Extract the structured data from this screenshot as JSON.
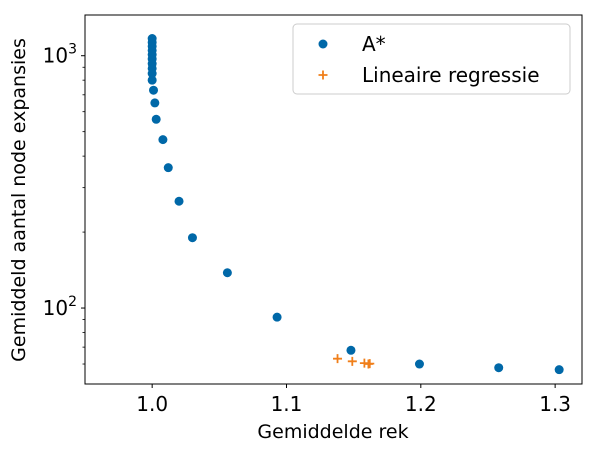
{
  "chart_data": {
    "type": "scatter",
    "xlabel": "Gemiddelde rek",
    "ylabel": "Gemiddeld aantal node expansies",
    "xlim": [
      0.95,
      1.32
    ],
    "ylim": [
      50,
      1450
    ],
    "yscale": "log",
    "grid": false,
    "legend_position": "top-right",
    "x_ticks": [
      {
        "value": 1.0,
        "label": "1.0"
      },
      {
        "value": 1.1,
        "label": "1.1"
      },
      {
        "value": 1.2,
        "label": "1.2"
      },
      {
        "value": 1.3,
        "label": "1.3"
      }
    ],
    "y_ticks": [
      {
        "value": 100,
        "base": "10",
        "exp": "2"
      },
      {
        "value": 1000,
        "base": "10",
        "exp": "3"
      }
    ],
    "series": [
      {
        "name": "A*",
        "marker": "circle",
        "color": "#0068a8",
        "points": [
          {
            "x": 1.0,
            "y": 1170
          },
          {
            "x": 1.0,
            "y": 1130
          },
          {
            "x": 1.0,
            "y": 1090
          },
          {
            "x": 1.0,
            "y": 1050
          },
          {
            "x": 1.0,
            "y": 1010
          },
          {
            "x": 1.0,
            "y": 970
          },
          {
            "x": 1.0,
            "y": 930
          },
          {
            "x": 1.0,
            "y": 890
          },
          {
            "x": 1.0,
            "y": 850
          },
          {
            "x": 1.0,
            "y": 800
          },
          {
            "x": 1.001,
            "y": 730
          },
          {
            "x": 1.002,
            "y": 650
          },
          {
            "x": 1.003,
            "y": 560
          },
          {
            "x": 1.008,
            "y": 465
          },
          {
            "x": 1.012,
            "y": 360
          },
          {
            "x": 1.02,
            "y": 265
          },
          {
            "x": 1.03,
            "y": 190
          },
          {
            "x": 1.056,
            "y": 138
          },
          {
            "x": 1.093,
            "y": 92
          },
          {
            "x": 1.148,
            "y": 68
          },
          {
            "x": 1.199,
            "y": 60
          },
          {
            "x": 1.258,
            "y": 58
          },
          {
            "x": 1.303,
            "y": 57
          }
        ]
      },
      {
        "name": "Lineaire regressie",
        "marker": "plus",
        "color": "#f07f1a",
        "points": [
          {
            "x": 1.138,
            "y": 63
          },
          {
            "x": 1.149,
            "y": 61.5
          },
          {
            "x": 1.158,
            "y": 60.5
          },
          {
            "x": 1.161,
            "y": 60
          },
          {
            "x": 1.162,
            "y": 60.2
          }
        ]
      }
    ]
  }
}
